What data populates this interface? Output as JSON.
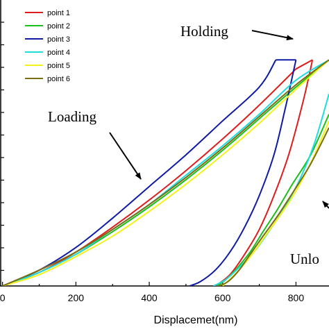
{
  "chart_data": {
    "type": "line",
    "xlabel": "Displacemet(nm)",
    "ylabel": "",
    "xlim": [
      -5,
      890
    ],
    "ylim": [
      0,
      105
    ],
    "x_ticks": [
      0,
      200,
      400,
      600,
      800
    ],
    "x_tick_labels": [
      "0",
      "200",
      "400",
      "600",
      "800"
    ],
    "legend_position": "top-left",
    "annotations": [
      {
        "text": "Holding"
      },
      {
        "text": "Loading"
      },
      {
        "text": "Unlo"
      }
    ],
    "series": [
      {
        "name": "point 1",
        "color": "#dd1c1c",
        "loading": {
          "x": [
            0,
            100,
            200,
            300,
            400,
            500,
            600,
            700,
            800
          ],
          "y": [
            0,
            6,
            15,
            26,
            38,
            51,
            65,
            80,
            96
          ]
        },
        "holding": {
          "x": [
            800,
            845
          ],
          "y": [
            96,
            100
          ]
        },
        "unloading": {
          "x": [
            845,
            820,
            780,
            740,
            700,
            660,
            620,
            580
          ],
          "y": [
            100,
            82,
            58,
            40,
            25,
            14,
            5,
            0
          ]
        }
      },
      {
        "name": "point 2",
        "color": "#1bbf1b",
        "loading": {
          "x": [
            0,
            100,
            200,
            300,
            400,
            500,
            600,
            700,
            800,
            890
          ],
          "y": [
            0,
            6,
            14,
            24,
            35,
            47,
            60,
            74,
            88,
            100
          ]
        },
        "holding": {
          "x": [],
          "y": []
        },
        "unloading": {
          "x": [
            890,
            840,
            790,
            750,
            710,
            675,
            640,
            610,
            585
          ],
          "y": [
            76,
            58,
            45,
            34,
            24,
            15,
            8,
            3,
            0
          ]
        }
      },
      {
        "name": "point 3",
        "color": "#0d1aa6",
        "loading": {
          "x": [
            0,
            100,
            200,
            300,
            400,
            500,
            600,
            700,
            745
          ],
          "y": [
            0,
            7,
            17,
            30,
            44,
            58,
            73,
            88,
            100
          ]
        },
        "holding": {
          "x": [
            745,
            800
          ],
          "y": [
            100,
            100
          ]
        },
        "unloading": {
          "x": [
            800,
            770,
            740,
            700,
            660,
            620,
            580,
            540,
            510
          ],
          "y": [
            100,
            78,
            58,
            40,
            26,
            15,
            7,
            2,
            0
          ]
        }
      },
      {
        "name": "point 4",
        "color": "#1fdcdc",
        "loading": {
          "x": [
            0,
            100,
            200,
            300,
            400,
            500,
            600,
            700,
            800,
            890
          ],
          "y": [
            0,
            6,
            14,
            25,
            36,
            49,
            62,
            76,
            91,
            100
          ]
        },
        "holding": {
          "x": [],
          "y": []
        },
        "unloading": {
          "x": [
            890,
            850,
            810,
            770,
            730,
            690,
            650,
            610,
            575
          ],
          "y": [
            85,
            63,
            47,
            35,
            25,
            16,
            9,
            3,
            0
          ]
        }
      },
      {
        "name": "point 5",
        "color": "#f2f21a",
        "loading": {
          "x": [
            0,
            100,
            200,
            300,
            400,
            500,
            600,
            700,
            800,
            890
          ],
          "y": [
            0,
            5,
            13,
            22,
            33,
            45,
            58,
            72,
            87,
            100
          ]
        },
        "holding": {
          "x": [],
          "y": []
        },
        "unloading": {
          "x": [
            890,
            845,
            800,
            760,
            720,
            685,
            650,
            620,
            600
          ],
          "y": [
            73,
            56,
            42,
            32,
            23,
            15,
            8,
            3,
            0
          ]
        }
      },
      {
        "name": "point 6",
        "color": "#7a6e12",
        "loading": {
          "x": [
            0,
            100,
            200,
            300,
            400,
            500,
            600,
            700,
            800,
            890
          ],
          "y": [
            0,
            7,
            15,
            25,
            36,
            48,
            61,
            75,
            89,
            100
          ]
        },
        "holding": {
          "x": [],
          "y": []
        },
        "unloading": {
          "x": [
            890,
            840,
            790,
            750,
            710,
            675,
            645,
            615,
            590
          ],
          "y": [
            70,
            54,
            41,
            31,
            22,
            14,
            7,
            2,
            0
          ]
        }
      }
    ]
  }
}
